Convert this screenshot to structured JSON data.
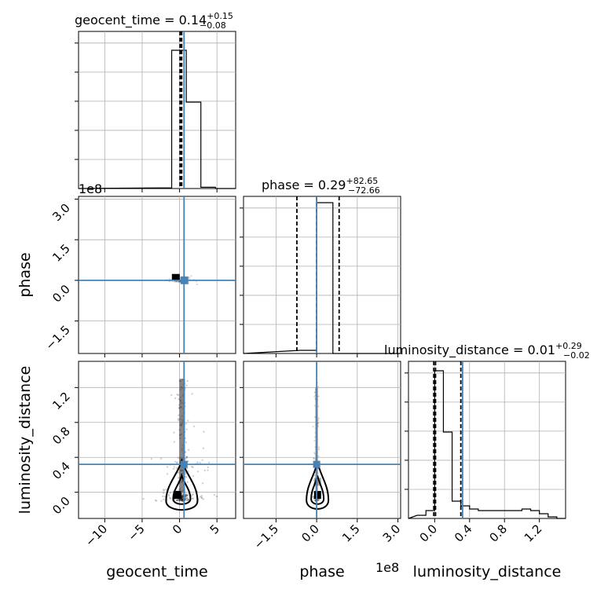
{
  "figure": {
    "titles": {
      "geocent_time": {
        "name": "geocent_time",
        "median": "0.14",
        "plus": "+0.15",
        "minus": "−0.08"
      },
      "phase": {
        "name": "phase",
        "median": "0.29",
        "plus": "+82.65",
        "minus": "−72.66"
      },
      "luminosity_distance": {
        "name": "luminosity_distance",
        "median": "0.01",
        "plus": "+0.29",
        "minus": "−0.02"
      }
    },
    "xlabels": [
      "geocent_time",
      "phase",
      "luminosity_distance"
    ],
    "ylabels": [
      "phase",
      "luminosity_distance"
    ],
    "offset_text": [
      "1e8",
      "1e8"
    ]
  },
  "chart_data": {
    "type": "corner",
    "parameters": [
      "geocent_time",
      "phase",
      "luminosity_distance"
    ],
    "colors": {
      "truth": "#4682b4",
      "hist": "#000000",
      "grid": "#b0b0b0"
    },
    "axes": {
      "geocent_time": {
        "range": [
          -13.5,
          7.5
        ],
        "ticks": [
          -10,
          -5,
          0,
          5
        ],
        "tick_labels": [
          "−10",
          "−5",
          "0",
          "5"
        ]
      },
      "phase": {
        "range": [
          -2.7,
          3.1
        ],
        "ticks": [
          -1.5,
          0.0,
          1.5,
          3.0
        ],
        "tick_labels": [
          "−1.5",
          "0.0",
          "1.5",
          "3.0"
        ],
        "scale_note": "×1e8"
      },
      "luminosity_distance": {
        "range": [
          -0.3,
          1.5
        ],
        "ticks": [
          0.0,
          0.4,
          0.8,
          1.2
        ],
        "tick_labels": [
          "0.0",
          "0.4",
          "0.8",
          "1.2"
        ]
      }
    },
    "truths": {
      "geocent_time": 0.6,
      "phase": 0.0,
      "luminosity_distance": 0.32
    },
    "quantiles": {
      "geocent_time": [
        0.06,
        0.14,
        0.29
      ],
      "phase": [
        -0.73,
        0.0,
        0.83
      ],
      "luminosity_distance": [
        -0.01,
        0.01,
        0.3
      ]
    },
    "hist1d": {
      "geocent_time": {
        "edges": [
          -3.0,
          -1.05,
          0.9,
          2.85,
          4.8
        ],
        "counts": [
          0.004,
          0.88,
          0.55,
          0.008
        ]
      },
      "phase": {
        "edges": [
          -0.6,
          0.0,
          0.6
        ],
        "counts": [
          0.02,
          0.96
        ]
      },
      "luminosity_distance": {
        "edges": [
          -0.2,
          -0.1,
          0.0,
          0.1,
          0.2,
          0.3,
          0.4,
          0.5,
          0.6,
          0.7,
          0.8,
          0.9,
          1.0,
          1.1,
          1.2,
          1.3,
          1.4
        ],
        "counts": [
          0.02,
          0.05,
          0.94,
          0.55,
          0.11,
          0.08,
          0.06,
          0.05,
          0.05,
          0.05,
          0.05,
          0.05,
          0.06,
          0.05,
          0.03,
          0.01
        ]
      }
    },
    "pairs": [
      {
        "x": "geocent_time",
        "y": "phase"
      },
      {
        "x": "geocent_time",
        "y": "luminosity_distance"
      },
      {
        "x": "phase",
        "y": "luminosity_distance"
      }
    ]
  }
}
